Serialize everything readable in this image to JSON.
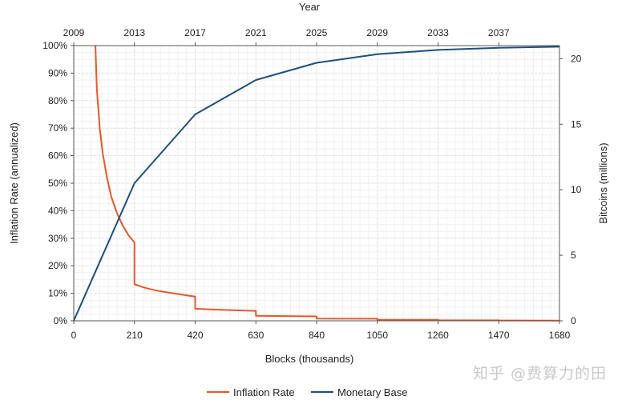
{
  "chart_data": {
    "type": "line",
    "top_axis": {
      "label": "Year",
      "ticks": [
        "2009",
        "2013",
        "2017",
        "2021",
        "2025",
        "2029",
        "2033",
        "2037"
      ]
    },
    "x": {
      "label": "Blocks (thousands)",
      "lim": [
        0,
        1680
      ],
      "ticks": [
        0,
        210,
        420,
        630,
        840,
        1050,
        1260,
        1470,
        1680
      ]
    },
    "y_left": {
      "label": "Inflation Rate (annualized)",
      "lim": [
        0,
        100
      ],
      "tick_labels": [
        "0%",
        "10%",
        "20%",
        "30%",
        "40%",
        "50%",
        "60%",
        "70%",
        "80%",
        "90%",
        "100%"
      ]
    },
    "y_right": {
      "label": "Bitcoins (millions)",
      "lim": [
        0,
        21
      ],
      "ticks": [
        0,
        5,
        10,
        15,
        20
      ]
    },
    "grid": true,
    "legend_position": "bottom-center",
    "series": [
      {
        "name": "Inflation Rate",
        "axis": "left",
        "color": "#e8572a",
        "points": [
          [
            75,
            100
          ],
          [
            80,
            84
          ],
          [
            90,
            70
          ],
          [
            100,
            61
          ],
          [
            115,
            52
          ],
          [
            130,
            45
          ],
          [
            150,
            39
          ],
          [
            170,
            34.5
          ],
          [
            190,
            31
          ],
          [
            210,
            28.5
          ],
          [
            210,
            13.3
          ],
          [
            240,
            12.2
          ],
          [
            280,
            11.1
          ],
          [
            330,
            10.2
          ],
          [
            380,
            9.4
          ],
          [
            420,
            8.8
          ],
          [
            420,
            4.4
          ],
          [
            480,
            4.1
          ],
          [
            560,
            3.8
          ],
          [
            630,
            3.6
          ],
          [
            630,
            1.8
          ],
          [
            700,
            1.75
          ],
          [
            840,
            1.6
          ],
          [
            840,
            0.8
          ],
          [
            1050,
            0.75
          ],
          [
            1050,
            0.4
          ],
          [
            1260,
            0.35
          ],
          [
            1260,
            0.2
          ],
          [
            1470,
            0.17
          ],
          [
            1470,
            0.1
          ],
          [
            1680,
            0.08
          ]
        ]
      },
      {
        "name": "Monetary Base",
        "axis": "right",
        "color": "#1d4f7c",
        "points": [
          [
            0,
            0
          ],
          [
            210,
            10.5
          ],
          [
            420,
            15.75
          ],
          [
            630,
            18.375
          ],
          [
            840,
            19.6875
          ],
          [
            1050,
            20.34375
          ],
          [
            1260,
            20.671875
          ],
          [
            1470,
            20.8359375
          ],
          [
            1680,
            20.91796875
          ]
        ]
      }
    ]
  },
  "watermark": "知乎 @费算力的田"
}
